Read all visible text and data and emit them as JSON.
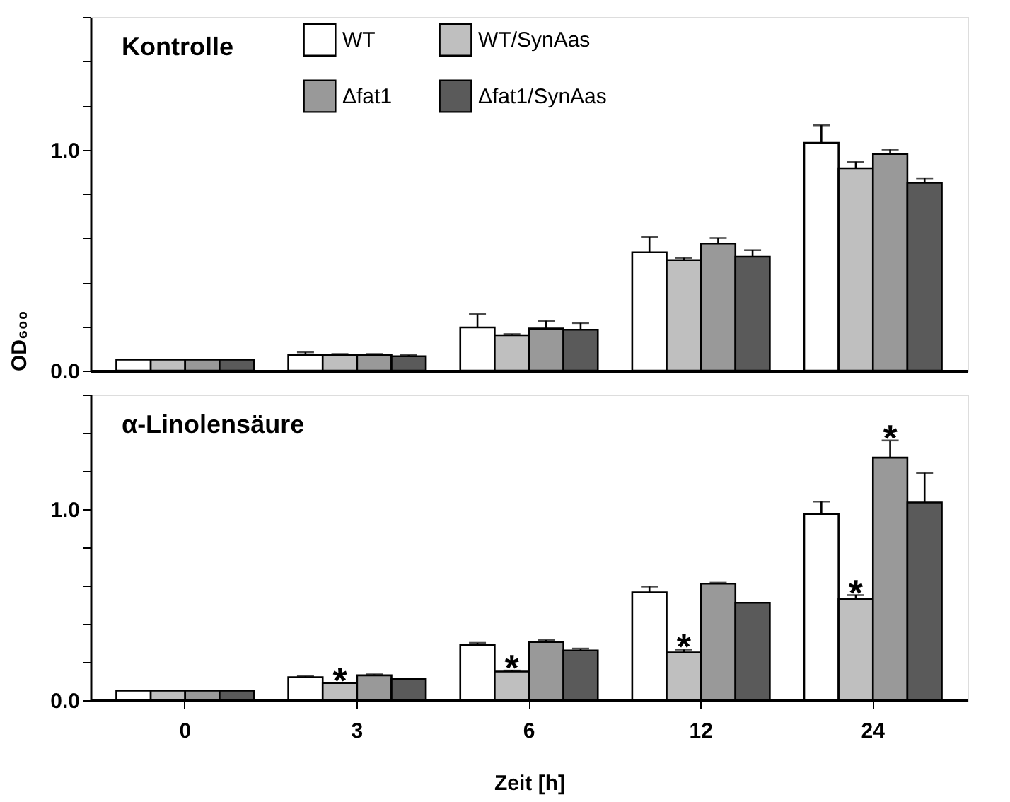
{
  "chart_data": [
    {
      "type": "bar",
      "title": "Kontrolle",
      "ylabel": "OD₆₀₀",
      "categories": [
        "0",
        "3",
        "6",
        "12",
        "24"
      ],
      "series": [
        {
          "name": "WT",
          "color": "#ffffff",
          "values": [
            0.05,
            0.07,
            0.195,
            0.535,
            1.03
          ],
          "errors": [
            null,
            0.013,
            0.06,
            0.07,
            0.08
          ]
        },
        {
          "name": "WT/SynAas",
          "color": "#bfbfbf",
          "values": [
            0.05,
            0.07,
            0.16,
            0.5,
            0.915
          ],
          "errors": [
            null,
            0.005,
            0.005,
            0.01,
            0.03
          ]
        },
        {
          "name": "Δfat1",
          "color": "#999999",
          "values": [
            0.05,
            0.07,
            0.19,
            0.575,
            0.98
          ],
          "errors": [
            null,
            0.005,
            0.035,
            0.025,
            0.02
          ]
        },
        {
          "name": "Δfat1/SynAas",
          "color": "#5a5a5a",
          "values": [
            0.05,
            0.065,
            0.185,
            0.515,
            0.85
          ],
          "errors": [
            null,
            0.005,
            0.03,
            0.03,
            0.02
          ]
        }
      ],
      "ylim": [
        0,
        1.6
      ],
      "yticks": [
        {
          "value": 0,
          "label": "0.0"
        },
        {
          "value": 0.2,
          "label": null
        },
        {
          "value": 0.4,
          "label": null
        },
        {
          "value": 0.6,
          "label": null
        },
        {
          "value": 0.8,
          "label": null
        },
        {
          "value": 1,
          "label": "1.0"
        },
        {
          "value": 1.2,
          "label": null
        },
        {
          "value": 1.4,
          "label": null
        },
        {
          "value": 1.6,
          "label": null
        }
      ],
      "tick_labels": "y",
      "grid": false,
      "legend": "top"
    },
    {
      "type": "bar",
      "title": "α-Linolensäure",
      "xlabel": "Zeit [h]",
      "categories": [
        "0",
        "3",
        "6",
        "12",
        "24"
      ],
      "series": [
        {
          "color": "#ffffff",
          "values": [
            0.05,
            0.12,
            0.29,
            0.565,
            0.975
          ],
          "errors": [
            null,
            0.005,
            0.01,
            0.03,
            0.065
          ]
        },
        {
          "color": "#bfbfbf",
          "values": [
            0.05,
            0.09,
            0.15,
            0.25,
            0.53
          ],
          "errors": [
            null,
            null,
            0.005,
            0.015,
            0.02
          ]
        },
        {
          "color": "#999999",
          "values": [
            0.05,
            0.13,
            0.305,
            0.61,
            1.27
          ],
          "errors": [
            null,
            0.005,
            0.01,
            0.005,
            0.09
          ]
        },
        {
          "color": "#5a5a5a",
          "values": [
            0.05,
            0.11,
            0.26,
            0.51,
            1.035
          ],
          "errors": [
            null,
            null,
            0.01,
            null,
            0.155
          ]
        }
      ],
      "ylim": [
        0,
        1.6
      ],
      "yticks": [
        {
          "value": 0,
          "label": "0.0"
        },
        {
          "value": 0.2,
          "label": null
        },
        {
          "value": 0.4,
          "label": null
        },
        {
          "value": 0.6,
          "label": null
        },
        {
          "value": 0.8,
          "label": null
        },
        {
          "value": 1,
          "label": "1.0"
        },
        {
          "value": 1.2,
          "label": null
        },
        {
          "value": 1.4,
          "label": null
        },
        {
          "value": 1.6,
          "label": null
        }
      ],
      "annotations": [
        {
          "text": "*",
          "x": "3",
          "y": 0.09
        },
        {
          "text": "*",
          "x": "6",
          "y": 0.15
        },
        {
          "text": "*",
          "x": "12",
          "y": 0.25
        },
        {
          "text": "*",
          "x": "24",
          "y": 0.53
        },
        {
          "text": "*",
          "x": "24",
          "y": 1.27
        }
      ],
      "grid": false
    }
  ]
}
